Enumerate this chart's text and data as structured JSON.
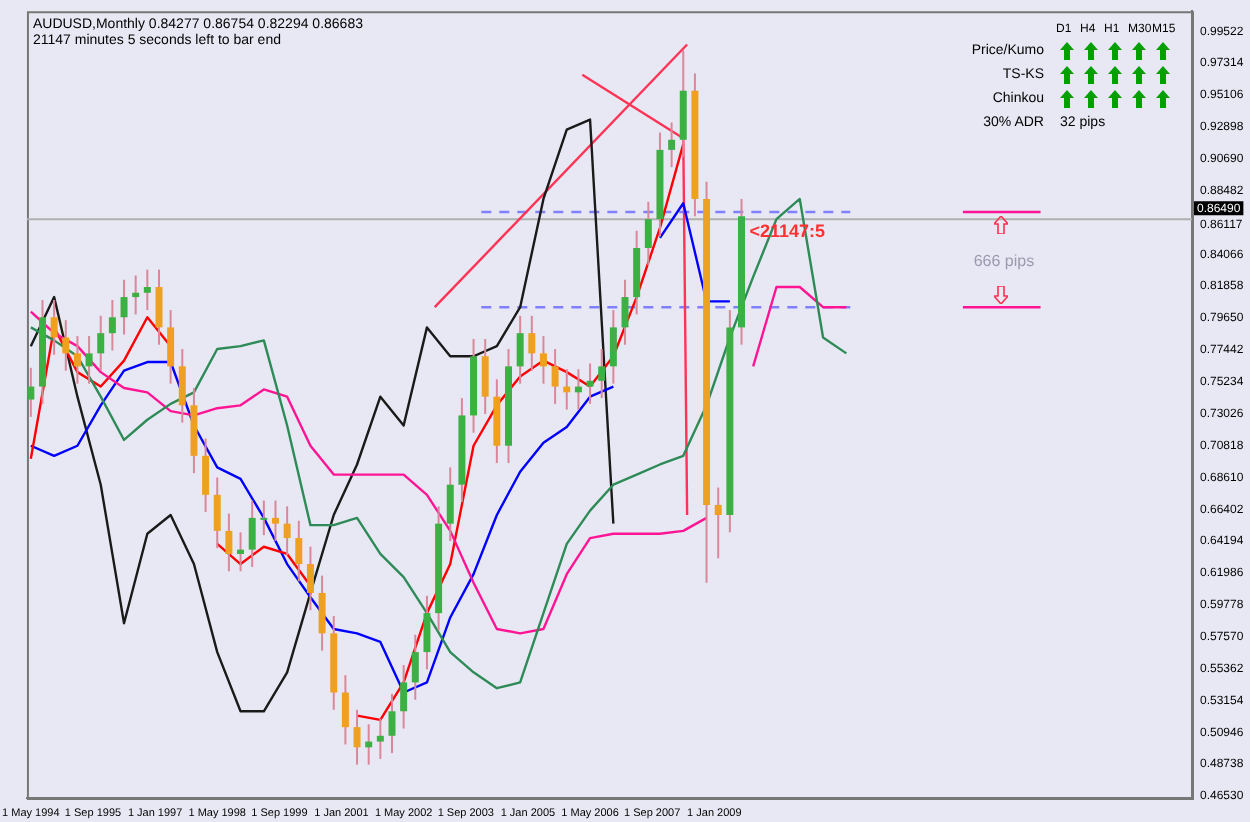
{
  "chart_data": {
    "type": "candlestick",
    "title": "AUDUSD,Monthly  0.84277 0.86754 0.82294 0.86683",
    "subtitle": "21147 minutes 5 seconds left to bar end",
    "annotations": [
      "D1",
      "H4",
      "H1",
      "M30",
      "M15",
      "Price/Kumo",
      "TS-KS",
      "Chinkou",
      "30% ADR",
      "32 pips",
      {
        "text": "<21147:5",
        "x": "2009-09",
        "y": 0.87
      },
      "666 pips"
    ],
    "x": [
      "1994-05",
      "1994-08",
      "1994-11",
      "1995-02",
      "1995-05",
      "1995-08",
      "1995-11",
      "1996-02",
      "1996-05",
      "1996-08",
      "1996-11",
      "1997-02",
      "1997-05",
      "1997-08",
      "1997-11",
      "1998-02",
      "1998-05",
      "1998-08",
      "1998-11",
      "1999-02",
      "1999-05",
      "1999-08",
      "1999-11",
      "2000-02",
      "2000-05",
      "2000-08",
      "2000-11",
      "2001-02",
      "2001-05",
      "2001-08",
      "2001-11",
      "2002-02",
      "2002-05",
      "2002-08",
      "2002-11",
      "2003-02",
      "2003-05",
      "2003-08",
      "2003-11",
      "2004-02",
      "2004-05",
      "2004-08",
      "2004-11",
      "2005-02",
      "2005-05",
      "2005-08",
      "2005-11",
      "2006-02",
      "2006-05",
      "2006-08",
      "2006-11",
      "2007-02",
      "2007-05",
      "2007-08",
      "2007-11",
      "2008-02",
      "2008-05",
      "2008-08",
      "2008-11",
      "2009-02",
      "2009-05",
      "2009-08"
    ],
    "ohlc": [
      [
        0.74,
        0.762,
        0.728,
        0.749
      ],
      [
        0.749,
        0.809,
        0.737,
        0.797
      ],
      [
        0.797,
        0.809,
        0.771,
        0.783
      ],
      [
        0.783,
        0.795,
        0.76,
        0.772
      ],
      [
        0.772,
        0.784,
        0.751,
        0.763
      ],
      [
        0.763,
        0.784,
        0.751,
        0.772
      ],
      [
        0.772,
        0.798,
        0.76,
        0.786
      ],
      [
        0.786,
        0.809,
        0.774,
        0.797
      ],
      [
        0.797,
        0.823,
        0.785,
        0.811
      ],
      [
        0.811,
        0.826,
        0.799,
        0.814
      ],
      [
        0.814,
        0.83,
        0.802,
        0.818
      ],
      [
        0.818,
        0.83,
        0.778,
        0.79
      ],
      [
        0.79,
        0.802,
        0.751,
        0.763
      ],
      [
        0.763,
        0.775,
        0.724,
        0.736
      ],
      [
        0.736,
        0.748,
        0.689,
        0.701
      ],
      [
        0.701,
        0.713,
        0.662,
        0.674
      ],
      [
        0.674,
        0.686,
        0.637,
        0.649
      ],
      [
        0.649,
        0.661,
        0.621,
        0.633
      ],
      [
        0.633,
        0.648,
        0.621,
        0.636
      ],
      [
        0.636,
        0.67,
        0.624,
        0.658
      ],
      [
        0.658,
        0.67,
        0.646,
        0.658
      ],
      [
        0.658,
        0.67,
        0.642,
        0.654
      ],
      [
        0.654,
        0.666,
        0.632,
        0.644
      ],
      [
        0.644,
        0.656,
        0.614,
        0.626
      ],
      [
        0.626,
        0.638,
        0.594,
        0.606
      ],
      [
        0.606,
        0.618,
        0.566,
        0.578
      ],
      [
        0.578,
        0.59,
        0.525,
        0.537
      ],
      [
        0.537,
        0.549,
        0.501,
        0.513
      ],
      [
        0.513,
        0.525,
        0.487,
        0.499
      ],
      [
        0.499,
        0.515,
        0.487,
        0.503
      ],
      [
        0.503,
        0.519,
        0.491,
        0.507
      ],
      [
        0.507,
        0.536,
        0.495,
        0.524
      ],
      [
        0.524,
        0.556,
        0.512,
        0.544
      ],
      [
        0.544,
        0.577,
        0.532,
        0.565
      ],
      [
        0.565,
        0.604,
        0.553,
        0.592
      ],
      [
        0.592,
        0.666,
        0.58,
        0.654
      ],
      [
        0.654,
        0.693,
        0.642,
        0.681
      ],
      [
        0.681,
        0.741,
        0.669,
        0.729
      ],
      [
        0.729,
        0.782,
        0.717,
        0.77
      ],
      [
        0.77,
        0.782,
        0.73,
        0.742
      ],
      [
        0.742,
        0.754,
        0.696,
        0.708
      ],
      [
        0.708,
        0.775,
        0.696,
        0.763
      ],
      [
        0.763,
        0.798,
        0.751,
        0.786
      ],
      [
        0.786,
        0.798,
        0.76,
        0.772
      ],
      [
        0.772,
        0.784,
        0.751,
        0.763
      ],
      [
        0.763,
        0.775,
        0.737,
        0.749
      ],
      [
        0.749,
        0.761,
        0.733,
        0.745
      ],
      [
        0.745,
        0.761,
        0.733,
        0.749
      ],
      [
        0.749,
        0.765,
        0.737,
        0.753
      ],
      [
        0.753,
        0.775,
        0.741,
        0.763
      ],
      [
        0.763,
        0.802,
        0.751,
        0.79
      ],
      [
        0.79,
        0.823,
        0.778,
        0.811
      ],
      [
        0.811,
        0.857,
        0.799,
        0.845
      ],
      [
        0.845,
        0.877,
        0.833,
        0.865
      ],
      [
        0.865,
        0.925,
        0.853,
        0.913
      ],
      [
        0.913,
        0.932,
        0.901,
        0.92
      ],
      [
        0.92,
        0.982,
        0.908,
        0.954
      ],
      [
        0.954,
        0.966,
        0.867,
        0.879
      ],
      [
        0.879,
        0.891,
        0.613,
        0.667
      ],
      [
        0.667,
        0.679,
        0.63,
        0.66
      ],
      [
        0.66,
        0.802,
        0.648,
        0.79
      ],
      [
        0.79,
        0.879,
        0.778,
        0.867
      ]
    ],
    "series": [
      {
        "type": "line",
        "color": "#2e8b57",
        "x": [
          "1994-05",
          "1994-11",
          "1995-05",
          "1995-11",
          "1996-05",
          "1996-11",
          "1997-05",
          "1997-11",
          "1998-05",
          "1998-11",
          "1999-05",
          "1999-11",
          "2000-05",
          "2000-11",
          "2001-05",
          "2001-11",
          "2002-05",
          "2002-11",
          "2003-05",
          "2003-11",
          "2004-05",
          "2004-11",
          "2005-05",
          "2005-11",
          "2006-05",
          "2006-11",
          "2007-05",
          "2007-11",
          "2008-05",
          "2008-11",
          "2009-05",
          "2009-11",
          "2010-05",
          "2010-11",
          "2011-05",
          "2011-11"
        ],
        "values": [
          0.79,
          0.781,
          0.77,
          0.742,
          0.712,
          0.726,
          0.737,
          0.745,
          0.775,
          0.777,
          0.781,
          0.722,
          0.653,
          0.653,
          0.658,
          0.633,
          0.617,
          0.592,
          0.565,
          0.551,
          0.54,
          0.544,
          0.592,
          0.64,
          0.663,
          0.681,
          0.688,
          0.695,
          0.701,
          0.736,
          0.783,
          0.825,
          0.865,
          0.879,
          0.783,
          0.772
        ]
      },
      {
        "type": "line",
        "color": "#ff1493",
        "x": [
          "1994-05",
          "1994-11",
          "1995-05",
          "1995-11",
          "1996-05",
          "1996-11",
          "1997-05",
          "1997-11",
          "1998-05",
          "1998-11",
          "1999-05",
          "1999-11",
          "2000-05",
          "2000-11",
          "2001-05",
          "2001-11",
          "2002-05",
          "2002-11",
          "2003-05",
          "2003-11",
          "2004-05",
          "2004-11",
          "2005-05",
          "2005-11",
          "2006-05",
          "2006-11",
          "2007-05",
          "2007-11",
          "2008-05",
          "2008-11",
          "2009-05",
          "2009-11",
          "2010-05",
          "2010-11",
          "2011-05",
          "2011-11"
        ],
        "values": [
          0.801,
          0.786,
          0.777,
          0.759,
          0.748,
          0.745,
          0.732,
          0.729,
          0.734,
          0.736,
          0.747,
          0.742,
          0.708,
          0.688,
          0.688,
          0.688,
          0.688,
          0.674,
          0.649,
          0.613,
          0.581,
          0.578,
          0.581,
          0.619,
          0.644,
          0.647,
          0.647,
          0.647,
          0.649,
          0.658,
          null,
          0.763,
          0.818,
          0.818,
          0.804,
          0.804
        ]
      },
      {
        "type": "line",
        "color": "#ff0000",
        "x": [
          "1994-05",
          "1994-11",
          "1995-05",
          "1995-11",
          "1996-05",
          "1996-11",
          "1997-05",
          "1997-11",
          "1998-05",
          "1998-11",
          "1999-05",
          "1999-11",
          "2000-05",
          "2000-11",
          "2001-05",
          "2001-11",
          "2002-05",
          "2002-11",
          "2003-05",
          "2003-11",
          "2004-05",
          "2004-11",
          "2005-05",
          "2005-11",
          "2006-05",
          "2006-11",
          "2007-05",
          "2007-11",
          "2008-05"
        ],
        "values": [
          0.699,
          0.79,
          0.759,
          0.749,
          0.767,
          0.797,
          0.777,
          null,
          0.64,
          0.626,
          0.638,
          0.633,
          0.611,
          null,
          0.521,
          0.518,
          0.544,
          0.592,
          0.626,
          0.708,
          0.736,
          0.756,
          0.767,
          0.759,
          0.749,
          0.77,
          0.811,
          0.859,
          0.917
        ]
      },
      {
        "type": "line",
        "color": "#0000ff",
        "x": [
          "1994-05",
          "1994-11",
          "1995-05",
          "1995-11",
          "1996-05",
          "1996-11",
          "1997-05",
          "1997-11",
          "1998-05",
          "1998-11",
          "1999-05",
          "1999-11",
          "2000-05",
          "2000-11",
          "2001-05",
          "2001-11",
          "2002-05",
          "2002-11",
          "2003-05",
          "2003-11",
          "2004-05",
          "2004-11",
          "2005-05",
          "2005-11",
          "2006-05",
          "2006-11",
          "2007-05",
          "2007-11",
          "2008-05",
          "2008-11",
          "2009-05"
        ],
        "values": [
          0.708,
          0.701,
          0.708,
          0.736,
          0.76,
          0.766,
          0.766,
          0.722,
          0.693,
          0.685,
          0.658,
          0.626,
          0.603,
          0.581,
          0.578,
          0.572,
          0.537,
          0.544,
          0.589,
          0.619,
          0.66,
          0.69,
          0.71,
          0.721,
          0.742,
          0.749,
          null,
          0.852,
          0.876,
          0.808,
          0.808
        ]
      },
      {
        "type": "line",
        "color": "#1a1a1a",
        "x": [
          "1994-05",
          "1994-11",
          "1995-05",
          "1995-11",
          "1996-05",
          "1996-11",
          "1997-05",
          "1997-11",
          "1998-05",
          "1998-11",
          "1999-05",
          "1999-11",
          "2000-05",
          "2000-11",
          "2001-05",
          "2001-11",
          "2002-05",
          "2002-11",
          "2003-05",
          "2003-11",
          "2004-05",
          "2004-11",
          "2005-05",
          "2005-11",
          "2006-05",
          "2006-11"
        ],
        "values": [
          0.777,
          0.811,
          0.742,
          0.681,
          0.585,
          0.647,
          0.66,
          0.626,
          0.565,
          0.524,
          0.524,
          0.551,
          0.606,
          0.66,
          0.695,
          0.742,
          0.722,
          0.79,
          0.77,
          0.77,
          0.777,
          0.804,
          0.879,
          0.927,
          0.934,
          0.654
        ]
      },
      {
        "type": "line",
        "color": "#ff3355",
        "x": [
          "2003-01",
          "2008-06"
        ],
        "values": [
          0.804,
          0.986
        ]
      },
      {
        "type": "line",
        "color": "#ff3355",
        "x": [
          "2006-03",
          "2008-05",
          "2008-06"
        ],
        "values": [
          0.965,
          0.921,
          0.66
        ]
      },
      {
        "type": "line",
        "color": "#8080ff",
        "line_style": "dashed",
        "x": [
          "2004-01",
          "2011-12"
        ],
        "values": [
          0.87,
          0.87
        ]
      },
      {
        "type": "line",
        "color": "#8080ff",
        "line_style": "dashed",
        "x": [
          "2004-01",
          "2011-12"
        ],
        "values": [
          0.804,
          0.804
        ]
      },
      {
        "type": "line",
        "color": "#ff1493",
        "x": [
          "2014-05",
          "2016-01"
        ],
        "values": [
          0.87,
          0.87
        ]
      },
      {
        "type": "line",
        "color": "#ff1493",
        "x": [
          "2014-05",
          "2016-01"
        ],
        "values": [
          0.804,
          0.804
        ]
      }
    ],
    "marker": "none",
    "legend": false,
    "grid": false,
    "ref_lines": [
      {
        "axis": "y",
        "value": 0.8649,
        "label": "0.86490",
        "color": "#b0b0b0"
      }
    ],
    "xlim": [
      "1994-04",
      "2019-04"
    ],
    "xticks": [
      {
        "value": "1994-05",
        "label": "1 May 1994"
      },
      {
        "value": "1995-09",
        "label": "1 Sep 1995"
      },
      {
        "value": "1997-01",
        "label": "1 Jan 1997"
      },
      {
        "value": "1998-05",
        "label": "1 May 1998"
      },
      {
        "value": "1999-09",
        "label": "1 Sep 1999"
      },
      {
        "value": "2001-01",
        "label": "1 Jan 2001"
      },
      {
        "value": "2002-05",
        "label": "1 May 2002"
      },
      {
        "value": "2003-09",
        "label": "1 Sep 2003"
      },
      {
        "value": "2005-01",
        "label": "1 Jan 2005"
      },
      {
        "value": "2006-05",
        "label": "1 May 2006"
      },
      {
        "value": "2007-09",
        "label": "1 Sep 2007"
      },
      {
        "value": "2009-01",
        "label": "1 Jan 2009"
      }
    ],
    "ylim": [
      0.4639,
      1.0091
    ],
    "yticks": [
      {
        "value": 0.4653,
        "label": "0.46530"
      },
      {
        "value": 0.48738,
        "label": "0.48738"
      },
      {
        "value": 0.50946,
        "label": "0.50946"
      },
      {
        "value": 0.53154,
        "label": "0.53154"
      },
      {
        "value": 0.55362,
        "label": "0.55362"
      },
      {
        "value": 0.5757,
        "label": "0.57570"
      },
      {
        "value": 0.59778,
        "label": "0.59778"
      },
      {
        "value": 0.61986,
        "label": "0.61986"
      },
      {
        "value": 0.64194,
        "label": "0.64194"
      },
      {
        "value": 0.66402,
        "label": "0.66402"
      },
      {
        "value": 0.6861,
        "label": "0.68610"
      },
      {
        "value": 0.70818,
        "label": "0.70818"
      },
      {
        "value": 0.73026,
        "label": "0.73026"
      },
      {
        "value": 0.75234,
        "label": "0.75234"
      },
      {
        "value": 0.77442,
        "label": "0.77442"
      },
      {
        "value": 0.7965,
        "label": "0.79650"
      },
      {
        "value": 0.81858,
        "label": "0.81858"
      },
      {
        "value": 0.84066,
        "label": "0.84066"
      },
      {
        "value": 0.86117,
        "label": "0.86117"
      },
      {
        "value": 0.88482,
        "label": "0.88482"
      },
      {
        "value": 0.9069,
        "label": "0.90690"
      },
      {
        "value": 0.92898,
        "label": "0.92898"
      },
      {
        "value": 0.95106,
        "label": "0.95106"
      },
      {
        "value": 0.97314,
        "label": "0.97314"
      },
      {
        "value": 0.99522,
        "label": "0.99522"
      }
    ]
  }
}
